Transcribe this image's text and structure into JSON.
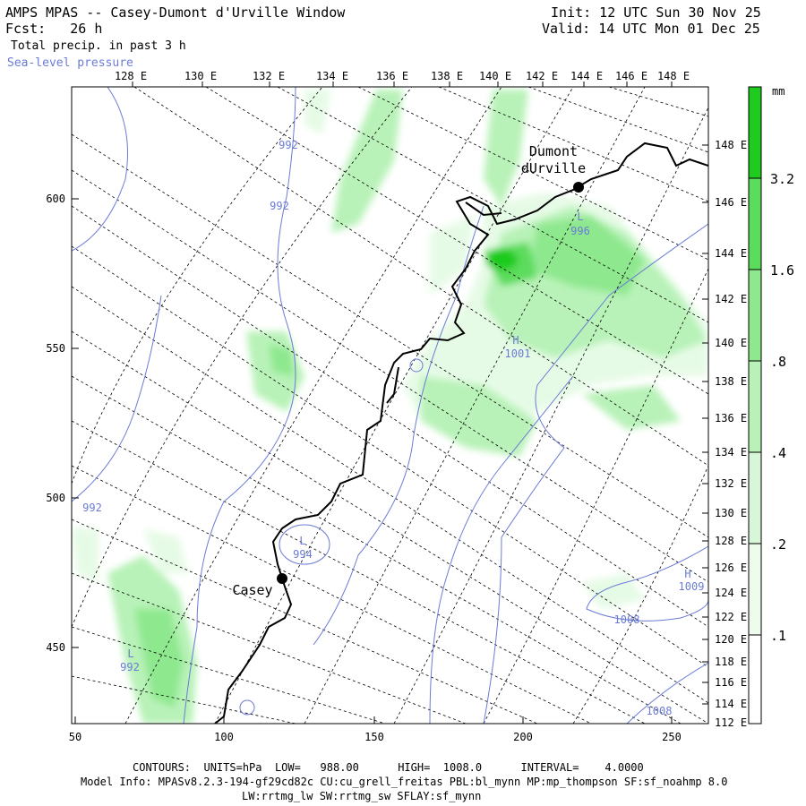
{
  "header": {
    "title": "AMPS MPAS -- Casey-Dumont d'Urville Window",
    "fcst_label": "Fcst:",
    "fcst_value": "26 h",
    "field": "Total precip. in past 3 h",
    "overlay": "Sea-level pressure",
    "init": "Init: 12 UTC Sun 30 Nov 25",
    "valid": "Valid: 14 UTC Mon 01 Dec 25"
  },
  "map": {
    "top_longitude_labels": [
      "128 E",
      "130 E",
      "132 E",
      "134 E",
      "136 E",
      "138 E",
      "140 E",
      "142 E",
      "144 E",
      "146 E",
      "148 E"
    ],
    "right_longitude_labels": [
      "148 E",
      "146 E",
      "144 E",
      "142 E",
      "140 E",
      "138 E",
      "136 E",
      "134 E",
      "132 E",
      "130 E",
      "128 E",
      "126 E",
      "124 E",
      "122 E",
      "120 E",
      "118 E",
      "116 E",
      "114 E",
      "112 E"
    ],
    "x_ticks": [
      "50",
      "100",
      "150",
      "200",
      "250"
    ],
    "y_ticks": [
      "600",
      "550",
      "500",
      "450"
    ],
    "stations": [
      {
        "name_line1": "Dumont",
        "name_line2": "dUrville"
      },
      {
        "name_line1": "Casey",
        "name_line2": ""
      }
    ],
    "pressure_labels": [
      "992",
      "992",
      "996",
      "1001",
      "994",
      "992",
      "992",
      "1008",
      "1009",
      "1008"
    ],
    "pressure_centers": [
      "L",
      "H",
      "L",
      "L",
      "H"
    ],
    "colors": {
      "precip_light": "#e6fbe6",
      "precip_1": "#b8f2b8",
      "precip_2": "#8ee88e",
      "precip_3": "#5cdc5c",
      "precip_heavy": "#1ecb1e",
      "pressure_contour": "#6b7bd6",
      "coast": "#000000"
    }
  },
  "colorbar": {
    "units": "mm",
    "levels": [
      "3.2",
      "1.6",
      ".8",
      ".4",
      ".2",
      ".1"
    ]
  },
  "footer": {
    "contours": "CONTOURS:  UNITS=hPa  LOW=   988.00      HIGH=  1008.0      INTERVAL=    4.0000",
    "model_info": "Model Info: MPASv8.2.3-194-gf29cd82c CU:cu_grell_freitas PBL:bl_mynn MP:mp_thompson SF:sf_noahmp 8.0",
    "physics": "LW:rrtmg_lw SW:rrtmg_sw SFLAY:sf_mynn"
  }
}
